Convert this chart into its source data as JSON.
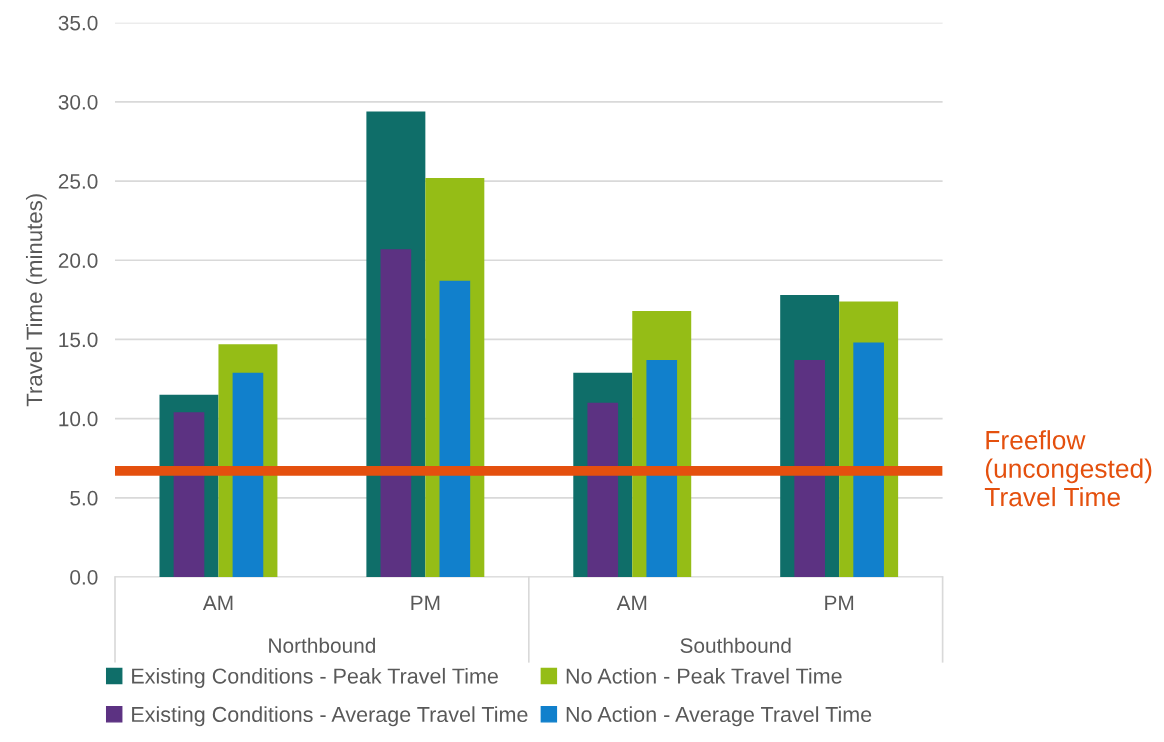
{
  "chart_data": {
    "type": "bar",
    "ylabel": "Travel Time (minutes)",
    "categories": [
      "AM",
      "PM",
      "AM",
      "PM"
    ],
    "series": [
      {
        "name": "Existing Conditions - Peak Travel Time",
        "color": "#0f6e69",
        "values": [
          11.5,
          29.4,
          12.9,
          17.8
        ]
      },
      {
        "name": "No Action - Peak Travel Time",
        "color": "#95bd16",
        "values": [
          14.7,
          25.2,
          16.8,
          17.4
        ]
      },
      {
        "name": "Existing Conditions - Average Travel Time",
        "color": "#5c3282",
        "values": [
          10.4,
          20.7,
          11.0,
          13.7
        ]
      },
      {
        "name": "No Action - Average Travel Time",
        "color": "#1180cc",
        "values": [
          12.9,
          18.7,
          13.7,
          14.8
        ]
      }
    ],
    "ylim": [
      0,
      35
    ],
    "yticks": [
      {
        "value": 0,
        "label": "0.0"
      },
      {
        "value": 5,
        "label": "5.0"
      },
      {
        "value": 10,
        "label": "10.0"
      },
      {
        "value": 15,
        "label": "15.0"
      },
      {
        "value": 20,
        "label": "20.0"
      },
      {
        "value": 25,
        "label": "25.0"
      },
      {
        "value": 30,
        "label": "30.0"
      },
      {
        "value": 35,
        "label": "35.0"
      }
    ],
    "ref_lines": [
      {
        "axis": "y",
        "value": 6.7,
        "label": "Freeflow\n(uncongested)\nTravel Time",
        "color": "#e4500e"
      }
    ],
    "annotations": [
      "Northbound",
      "Southbound"
    ],
    "grid": "y",
    "legend": "bottom"
  }
}
